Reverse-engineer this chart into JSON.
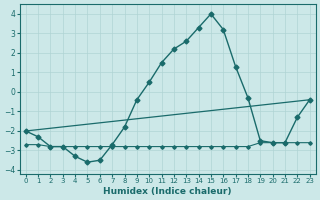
{
  "xlabel": "Humidex (Indice chaleur)",
  "background_color": "#cce8e8",
  "line_color": "#1a6b6b",
  "xlim": [
    -0.5,
    23.5
  ],
  "ylim": [
    -4.2,
    4.5
  ],
  "yticks": [
    -4,
    -3,
    -2,
    -1,
    0,
    1,
    2,
    3,
    4
  ],
  "xticks": [
    0,
    1,
    2,
    3,
    4,
    5,
    6,
    7,
    8,
    9,
    10,
    11,
    12,
    13,
    14,
    15,
    16,
    17,
    18,
    19,
    20,
    21,
    22,
    23
  ],
  "main_x": [
    0,
    1,
    2,
    3,
    4,
    5,
    6,
    7,
    8,
    9,
    10,
    11,
    12,
    13,
    14,
    15,
    16,
    17,
    18,
    19,
    20,
    21,
    22,
    23
  ],
  "main_y": [
    -2.0,
    -2.3,
    -2.8,
    -2.8,
    -3.3,
    -3.6,
    -3.5,
    -2.7,
    -1.8,
    -0.4,
    0.5,
    1.5,
    2.2,
    2.6,
    3.3,
    4.0,
    3.2,
    1.3,
    -0.3,
    -2.5,
    -2.6,
    -2.6,
    -1.3,
    -0.4
  ],
  "trend_x": [
    0,
    23
  ],
  "trend_y": [
    -2.0,
    -0.4
  ],
  "flat_x": [
    0,
    1,
    2,
    3,
    4,
    5,
    6,
    7,
    8,
    9,
    10,
    11,
    12,
    13,
    14,
    15,
    16,
    17,
    18,
    19,
    20,
    21,
    22,
    23
  ],
  "flat_y": [
    -2.7,
    -2.7,
    -2.8,
    -2.8,
    -2.8,
    -2.8,
    -2.8,
    -2.8,
    -2.8,
    -2.8,
    -2.8,
    -2.8,
    -2.8,
    -2.8,
    -2.8,
    -2.8,
    -2.8,
    -2.8,
    -2.8,
    -2.6,
    -2.6,
    -2.6,
    -2.6,
    -2.6
  ],
  "grid_color": "#b0d4d4",
  "xlabel_fontsize": 6.5,
  "tick_fontsize": 5.5
}
